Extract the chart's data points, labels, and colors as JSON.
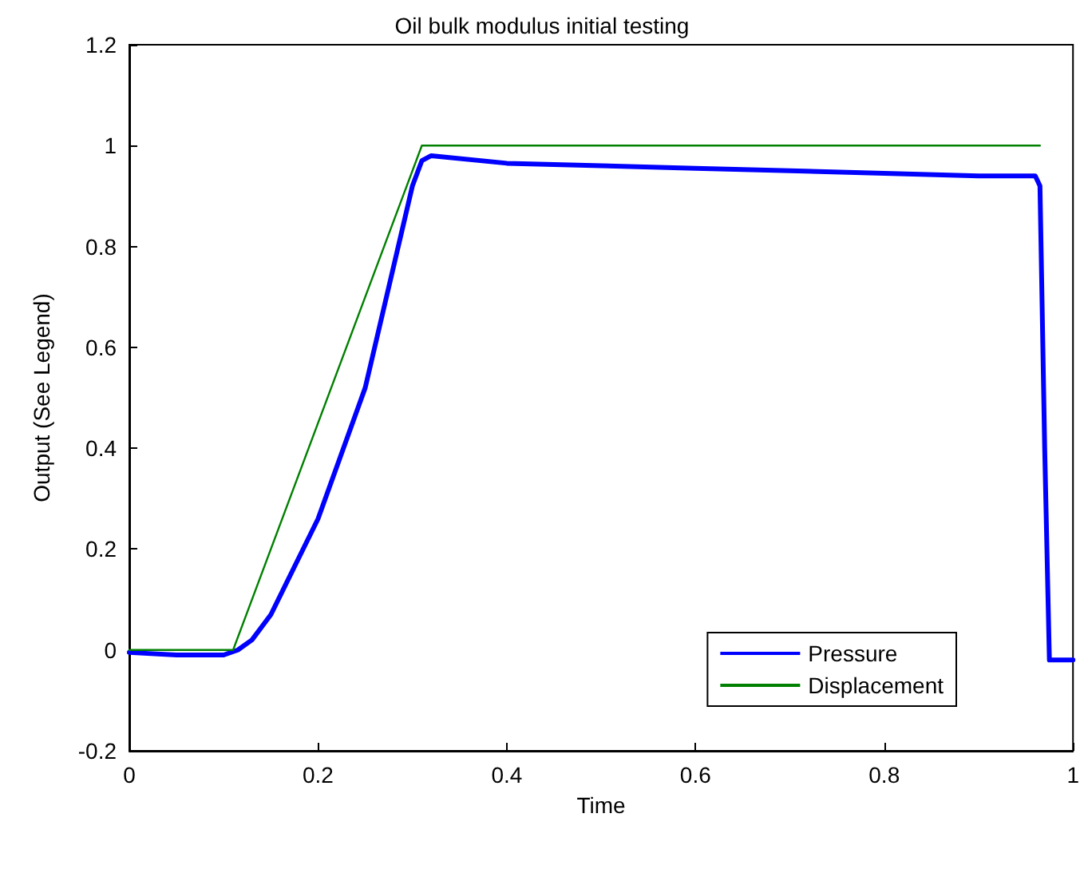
{
  "chart_data": {
    "type": "line",
    "title": "Oil bulk modulus initial testing",
    "xlabel": "Time",
    "ylabel": "Output (See Legend)",
    "xlim": [
      0,
      1
    ],
    "xticks": [
      0,
      0.2,
      0.4,
      0.6,
      0.8,
      1
    ],
    "ylim": [
      -0.2,
      1.2
    ],
    "yticks": [
      -0.2,
      0,
      0.2,
      0.4,
      0.6,
      0.8,
      1,
      1.2
    ],
    "grid": false,
    "legend": "bottom right",
    "marker": "none",
    "line_style": "solid",
    "series": [
      {
        "name": "Pressure",
        "color": "#0000ff",
        "x": [
          0,
          0.05,
          0.1,
          0.115,
          0.13,
          0.15,
          0.2,
          0.25,
          0.3,
          0.31,
          0.32,
          0.4,
          0.5,
          0.6,
          0.7,
          0.8,
          0.9,
          0.96,
          0.965,
          0.97,
          0.975,
          0.98,
          1
        ],
        "values": [
          -0.005,
          -0.01,
          -0.01,
          0,
          0.02,
          0.07,
          0.26,
          0.52,
          0.92,
          0.97,
          0.98,
          0.965,
          0.96,
          0.955,
          0.95,
          0.945,
          0.94,
          0.94,
          0.92,
          0.4,
          -0.02,
          -0.02,
          -0.02
        ]
      },
      {
        "name": "Displacement",
        "color": "#008000",
        "x": [
          0,
          0.11,
          0.31,
          0.965
        ],
        "values": [
          0,
          0,
          1,
          1
        ]
      }
    ]
  }
}
